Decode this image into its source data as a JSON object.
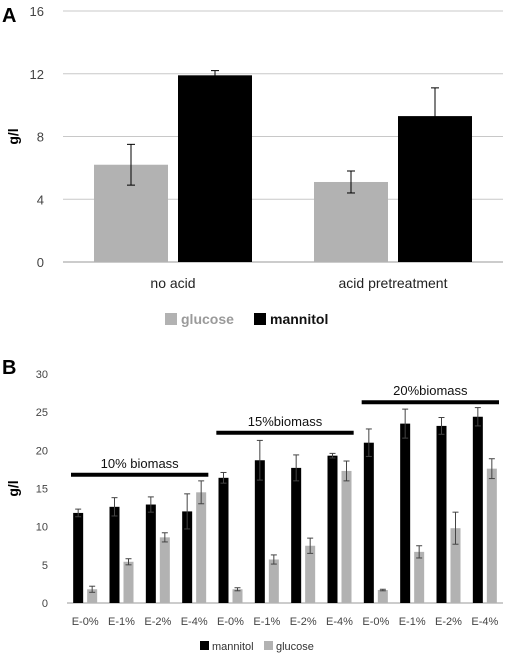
{
  "colors": {
    "glucose": "#b2b2b2",
    "mannitol": "#000000",
    "grid": "#c8c8c8",
    "axis": "#9a9a9a"
  },
  "chart_data": [
    {
      "panel": "A",
      "type": "bar",
      "title": "",
      "xlabel": "",
      "ylabel": "g/l",
      "ylim": [
        0,
        16
      ],
      "yticks": [
        "0",
        "4",
        "8",
        "12",
        "16"
      ],
      "grid": true,
      "legend_position": "bottom",
      "categories": [
        "no acid",
        "acid pretreatment"
      ],
      "series": [
        {
          "name": "glucose",
          "color": "#b2b2b2",
          "values": [
            6.2,
            5.1
          ],
          "errors": [
            1.3,
            0.7
          ]
        },
        {
          "name": "mannitol",
          "color": "#000000",
          "values": [
            11.9,
            9.3
          ],
          "errors": [
            0.3,
            1.8
          ]
        }
      ]
    },
    {
      "panel": "B",
      "type": "bar",
      "title": "",
      "xlabel": "",
      "ylabel": "g/l",
      "ylim": [
        0,
        30
      ],
      "yticks": [
        "0",
        "5",
        "10",
        "15",
        "20",
        "25",
        "30"
      ],
      "grid": false,
      "legend_position": "bottom",
      "categories": [
        "E-0%",
        "E-1%",
        "E-2%",
        "E-4%",
        "E-0%",
        "E-1%",
        "E-2%",
        "E-4%",
        "E-0%",
        "E-1%",
        "E-2%",
        "E-4%"
      ],
      "series": [
        {
          "name": "mannitol",
          "color": "#000000",
          "values": [
            11.8,
            12.6,
            12.9,
            12.0,
            16.4,
            18.7,
            17.7,
            19.3,
            21.0,
            23.5,
            23.2,
            24.4
          ],
          "errors": [
            0.5,
            1.2,
            1.0,
            2.3,
            0.7,
            2.6,
            1.7,
            0.3,
            1.8,
            1.9,
            1.1,
            1.2
          ]
        },
        {
          "name": "glucose",
          "color": "#b2b2b2",
          "values": [
            1.8,
            5.4,
            8.6,
            14.5,
            1.8,
            5.7,
            7.5,
            17.3,
            1.7,
            6.7,
            9.8,
            17.6
          ],
          "errors": [
            0.4,
            0.4,
            0.6,
            1.5,
            0.2,
            0.6,
            1.0,
            1.3,
            0.1,
            0.8,
            2.1,
            1.3
          ]
        }
      ],
      "groups": [
        {
          "label": "10% biomass",
          "level": 16.8,
          "from": 0,
          "to": 3
        },
        {
          "label": "15%biomass",
          "level": 22.3,
          "from": 4,
          "to": 7
        },
        {
          "label": "20%biomass",
          "level": 26.3,
          "from": 8,
          "to": 11
        }
      ]
    }
  ]
}
